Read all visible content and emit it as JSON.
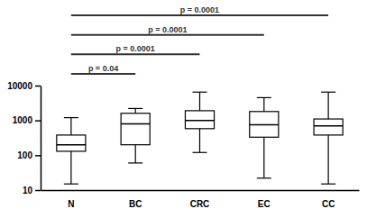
{
  "chart_data": {
    "type": "box",
    "categories": [
      "N",
      "BC",
      "CRC",
      "EC",
      "CC"
    ],
    "min": [
      15,
      60,
      120,
      22,
      15
    ],
    "q1": [
      130,
      200,
      580,
      330,
      380
    ],
    "median": [
      200,
      800,
      1000,
      750,
      700
    ],
    "q3": [
      380,
      1600,
      1900,
      1800,
      1100
    ],
    "max": [
      1200,
      2200,
      6500,
      4500,
      6500
    ],
    "color": "#000000",
    "log": "y",
    "ylim": [
      10,
      10000
    ],
    "yticks": [
      10,
      100,
      1000,
      10000
    ],
    "annotations": [
      {
        "from": "N",
        "to": "CC",
        "label": "p = 0.0001"
      },
      {
        "from": "N",
        "to": "EC",
        "label": "p = 0.0001"
      },
      {
        "from": "N",
        "to": "CRC",
        "label": "p = 0.0001"
      },
      {
        "from": "N",
        "to": "BC",
        "label": "p = 0.04"
      }
    ]
  }
}
